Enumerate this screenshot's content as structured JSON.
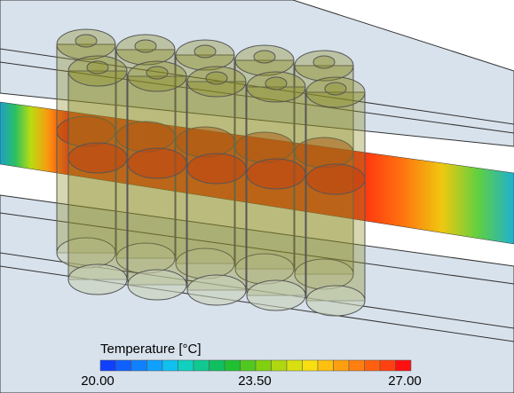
{
  "legend": {
    "title": "Temperature [°C]",
    "ticks": [
      "20.00",
      "23.50",
      "27.00"
    ]
  }
}
